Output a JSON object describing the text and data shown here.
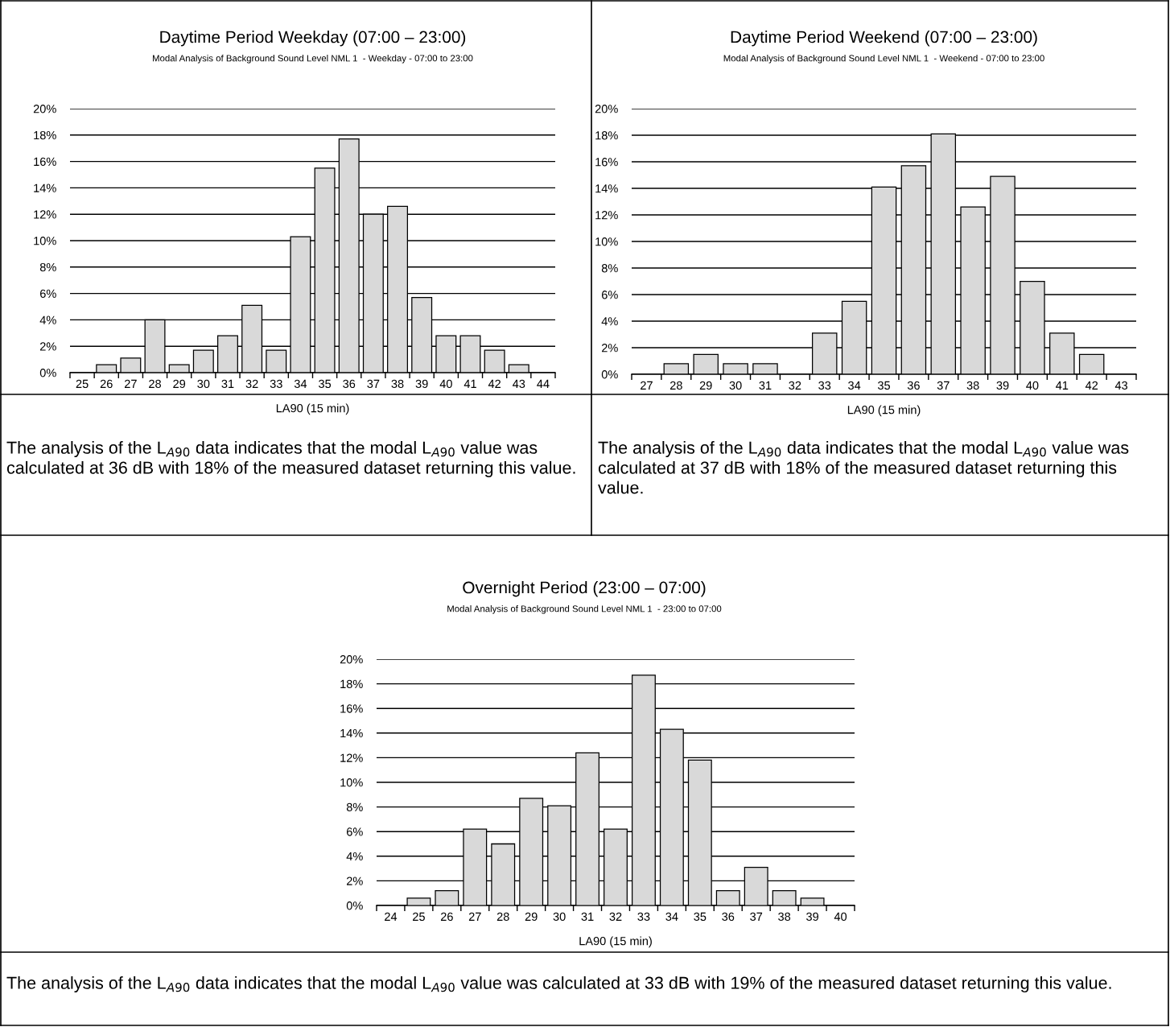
{
  "chart_data": [
    {
      "type": "bar",
      "title": "Daytime Period Weekday (07:00 – 23:00)",
      "subtitle": "Modal Analysis of Background Sound Level NML 1  - Weekday - 07:00 to 23:00",
      "xlabel": "LA90 (15 min)",
      "categories": [
        "25",
        "26",
        "27",
        "28",
        "29",
        "30",
        "31",
        "32",
        "33",
        "34",
        "35",
        "36",
        "37",
        "38",
        "39",
        "40",
        "41",
        "42",
        "43",
        "44"
      ],
      "series": [
        {
          "color": "#d9d9d9",
          "values": [
            null,
            0.6,
            1.1,
            4.0,
            0.6,
            1.7,
            2.8,
            5.1,
            1.7,
            10.3,
            15.5,
            17.7,
            12.0,
            12.6,
            5.7,
            2.8,
            2.8,
            1.7,
            0.6,
            null
          ]
        }
      ],
      "ylim": [
        0,
        20
      ],
      "yticks": [
        {
          "value": 0,
          "label": "0%"
        },
        {
          "value": 2,
          "label": "2%"
        },
        {
          "value": 4,
          "label": "4%"
        },
        {
          "value": 6,
          "label": "6%"
        },
        {
          "value": 8,
          "label": "8%"
        },
        {
          "value": 10,
          "label": "10%"
        },
        {
          "value": 12,
          "label": "12%"
        },
        {
          "value": 14,
          "label": "14%"
        },
        {
          "value": 16,
          "label": "16%"
        },
        {
          "value": 18,
          "label": "18%"
        },
        {
          "value": 20,
          "label": "20%"
        }
      ],
      "grid": "y",
      "legend": false,
      "annotations": [
        "The analysis of the L$_{A90}$ data indicates that the modal L$_{A90}$ value was calculated at 36 dB with 18% of the measured dataset returning this value."
      ]
    },
    {
      "type": "bar",
      "title": "Daytime Period Weekend (07:00 – 23:00)",
      "subtitle": "Modal Analysis of Background Sound Level NML 1  - Weekend - 07:00 to 23:00",
      "xlabel": "LA90 (15 min)",
      "categories": [
        "27",
        "28",
        "29",
        "30",
        "31",
        "32",
        "33",
        "34",
        "35",
        "36",
        "37",
        "38",
        "39",
        "40",
        "41",
        "42",
        "43"
      ],
      "series": [
        {
          "color": "#d9d9d9",
          "values": [
            null,
            0.8,
            1.5,
            0.8,
            0.8,
            null,
            3.1,
            5.5,
            14.1,
            15.7,
            18.1,
            12.6,
            14.9,
            7.0,
            3.1,
            1.5,
            null
          ]
        }
      ],
      "ylim": [
        0,
        20
      ],
      "yticks": [
        {
          "value": 0,
          "label": "0%"
        },
        {
          "value": 2,
          "label": "2%"
        },
        {
          "value": 4,
          "label": "4%"
        },
        {
          "value": 6,
          "label": "6%"
        },
        {
          "value": 8,
          "label": "8%"
        },
        {
          "value": 10,
          "label": "10%"
        },
        {
          "value": 12,
          "label": "12%"
        },
        {
          "value": 14,
          "label": "14%"
        },
        {
          "value": 16,
          "label": "16%"
        },
        {
          "value": 18,
          "label": "18%"
        },
        {
          "value": 20,
          "label": "20%"
        }
      ],
      "grid": "y",
      "legend": false,
      "annotations": [
        "The analysis of the L$_{A90}$ data indicates that the modal L$_{A90}$ value was calculated at 37 dB with 18% of the measured dataset returning this value."
      ]
    },
    {
      "type": "bar",
      "title": "Overnight Period (23:00 – 07:00)",
      "subtitle": "Modal Analysis of Background Sound Level NML 1  - 23:00 to 07:00",
      "xlabel": "LA90 (15 min)",
      "categories": [
        "24",
        "25",
        "26",
        "27",
        "28",
        "29",
        "30",
        "31",
        "32",
        "33",
        "34",
        "35",
        "36",
        "37",
        "38",
        "39",
        "40"
      ],
      "series": [
        {
          "color": "#d9d9d9",
          "values": [
            null,
            0.6,
            1.2,
            6.2,
            5.0,
            8.7,
            8.1,
            12.4,
            6.2,
            18.7,
            14.3,
            11.8,
            1.2,
            3.1,
            1.2,
            0.6,
            null
          ]
        }
      ],
      "ylim": [
        0,
        20
      ],
      "yticks": [
        {
          "value": 0,
          "label": "0%"
        },
        {
          "value": 2,
          "label": "2%"
        },
        {
          "value": 4,
          "label": "4%"
        },
        {
          "value": 6,
          "label": "6%"
        },
        {
          "value": 8,
          "label": "8%"
        },
        {
          "value": 10,
          "label": "10%"
        },
        {
          "value": 12,
          "label": "12%"
        },
        {
          "value": 14,
          "label": "14%"
        },
        {
          "value": 16,
          "label": "16%"
        },
        {
          "value": 18,
          "label": "18%"
        },
        {
          "value": 20,
          "label": "20%"
        }
      ],
      "grid": "y",
      "legend": false,
      "annotations": [
        "The analysis of the L$_{A90}$ data indicates that the modal L$_{A90}$ value was calculated at 33 dB with 19% of the measured dataset returning this value."
      ]
    }
  ]
}
